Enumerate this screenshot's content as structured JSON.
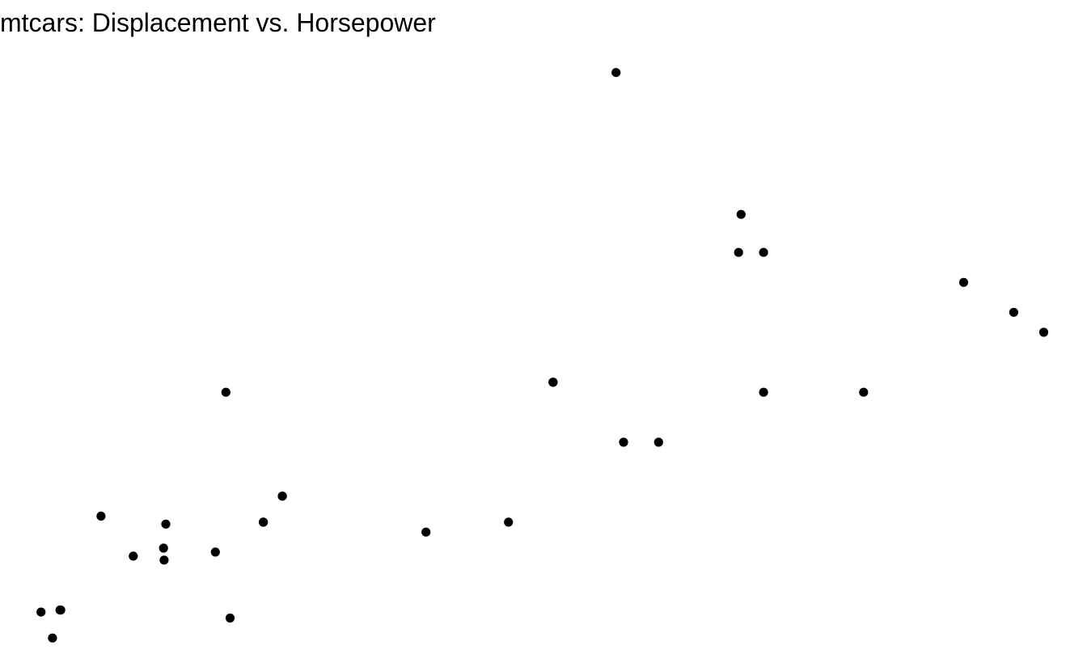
{
  "chart_data": {
    "type": "scatter",
    "title": "mtcars: Displacement vs. Horsepower",
    "xlabel": "",
    "ylabel": "",
    "axes_visible": false,
    "grid": false,
    "xlim": [
      54.7,
      489.3
    ],
    "ylim": [
      35.5,
      353.5
    ],
    "point_color": "#000000",
    "points": [
      {
        "x": 160.0,
        "y": 110
      },
      {
        "x": 160.0,
        "y": 110
      },
      {
        "x": 108.0,
        "y": 93
      },
      {
        "x": 258.0,
        "y": 110
      },
      {
        "x": 360.0,
        "y": 175
      },
      {
        "x": 225.0,
        "y": 105
      },
      {
        "x": 360.0,
        "y": 245
      },
      {
        "x": 146.7,
        "y": 62
      },
      {
        "x": 140.8,
        "y": 95
      },
      {
        "x": 167.6,
        "y": 123
      },
      {
        "x": 167.6,
        "y": 123
      },
      {
        "x": 275.8,
        "y": 180
      },
      {
        "x": 275.8,
        "y": 180
      },
      {
        "x": 275.8,
        "y": 180
      },
      {
        "x": 472.0,
        "y": 205
      },
      {
        "x": 460.0,
        "y": 215
      },
      {
        "x": 440.0,
        "y": 230
      },
      {
        "x": 78.7,
        "y": 66
      },
      {
        "x": 75.7,
        "y": 52
      },
      {
        "x": 71.1,
        "y": 65
      },
      {
        "x": 120.1,
        "y": 97
      },
      {
        "x": 318.0,
        "y": 150
      },
      {
        "x": 304.0,
        "y": 150
      },
      {
        "x": 350.0,
        "y": 245
      },
      {
        "x": 400.0,
        "y": 175
      },
      {
        "x": 79.0,
        "y": 66
      },
      {
        "x": 120.3,
        "y": 91
      },
      {
        "x": 95.1,
        "y": 113
      },
      {
        "x": 351.0,
        "y": 264
      },
      {
        "x": 145.0,
        "y": 175
      },
      {
        "x": 301.0,
        "y": 335
      },
      {
        "x": 121.0,
        "y": 109
      }
    ]
  }
}
